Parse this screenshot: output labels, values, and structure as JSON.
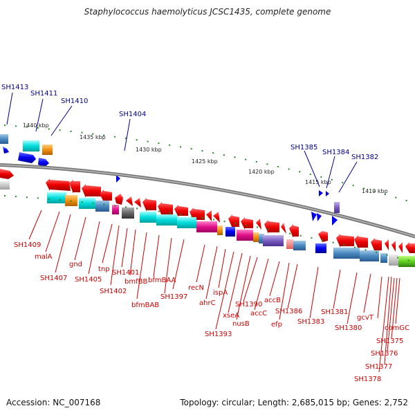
{
  "title": "Staphylococcus haemolyticus JCSC1435, complete genome",
  "accession": "Accession: NC_007168",
  "summary": "Topology: circular; Length: 2,685,015 bp; Genes: 2,752",
  "kbp_labels": [
    "1440 kbp",
    "1435 kbp",
    "1430 kbp",
    "1425 kbp",
    "1420 kbp",
    "1415 kbp",
    "1410 kbp"
  ],
  "top_labels": [
    "SH1413",
    "SH1411",
    "SH1410",
    "SH1404",
    "SH1385",
    "SH1384",
    "SH1382"
  ],
  "bottom_labels": [
    "SH1409",
    "malA",
    "SH1407",
    "gnd",
    "SH1405",
    "tnp",
    "SH1402",
    "SH1401",
    "bmfBB",
    "bfmBAB",
    "bfmBAA",
    "SH1397",
    "recN",
    "ahrC",
    "ispA",
    "SH1393",
    "xseA",
    "nusB",
    "SH1390",
    "accC",
    "accB",
    "efp",
    "SH1386",
    "SH1383",
    "SH1381",
    "SH1380",
    "gcvT",
    "comGC",
    "SH1375",
    "SH1376",
    "SH1377",
    "SH1378"
  ],
  "colors": {
    "red": "#ee0000",
    "blue": "#0000ee",
    "cyan": "#00d8d8",
    "steel": "#4a8ac0",
    "orange": "#f09010",
    "magenta": "#e0108a",
    "purple": "#7a5cc0",
    "green": "#4ac01e",
    "lime": "#90ee20",
    "gray": "#666666",
    "pink": "#f08080",
    "backbone": "#777777",
    "ticks": "#228b22"
  }
}
